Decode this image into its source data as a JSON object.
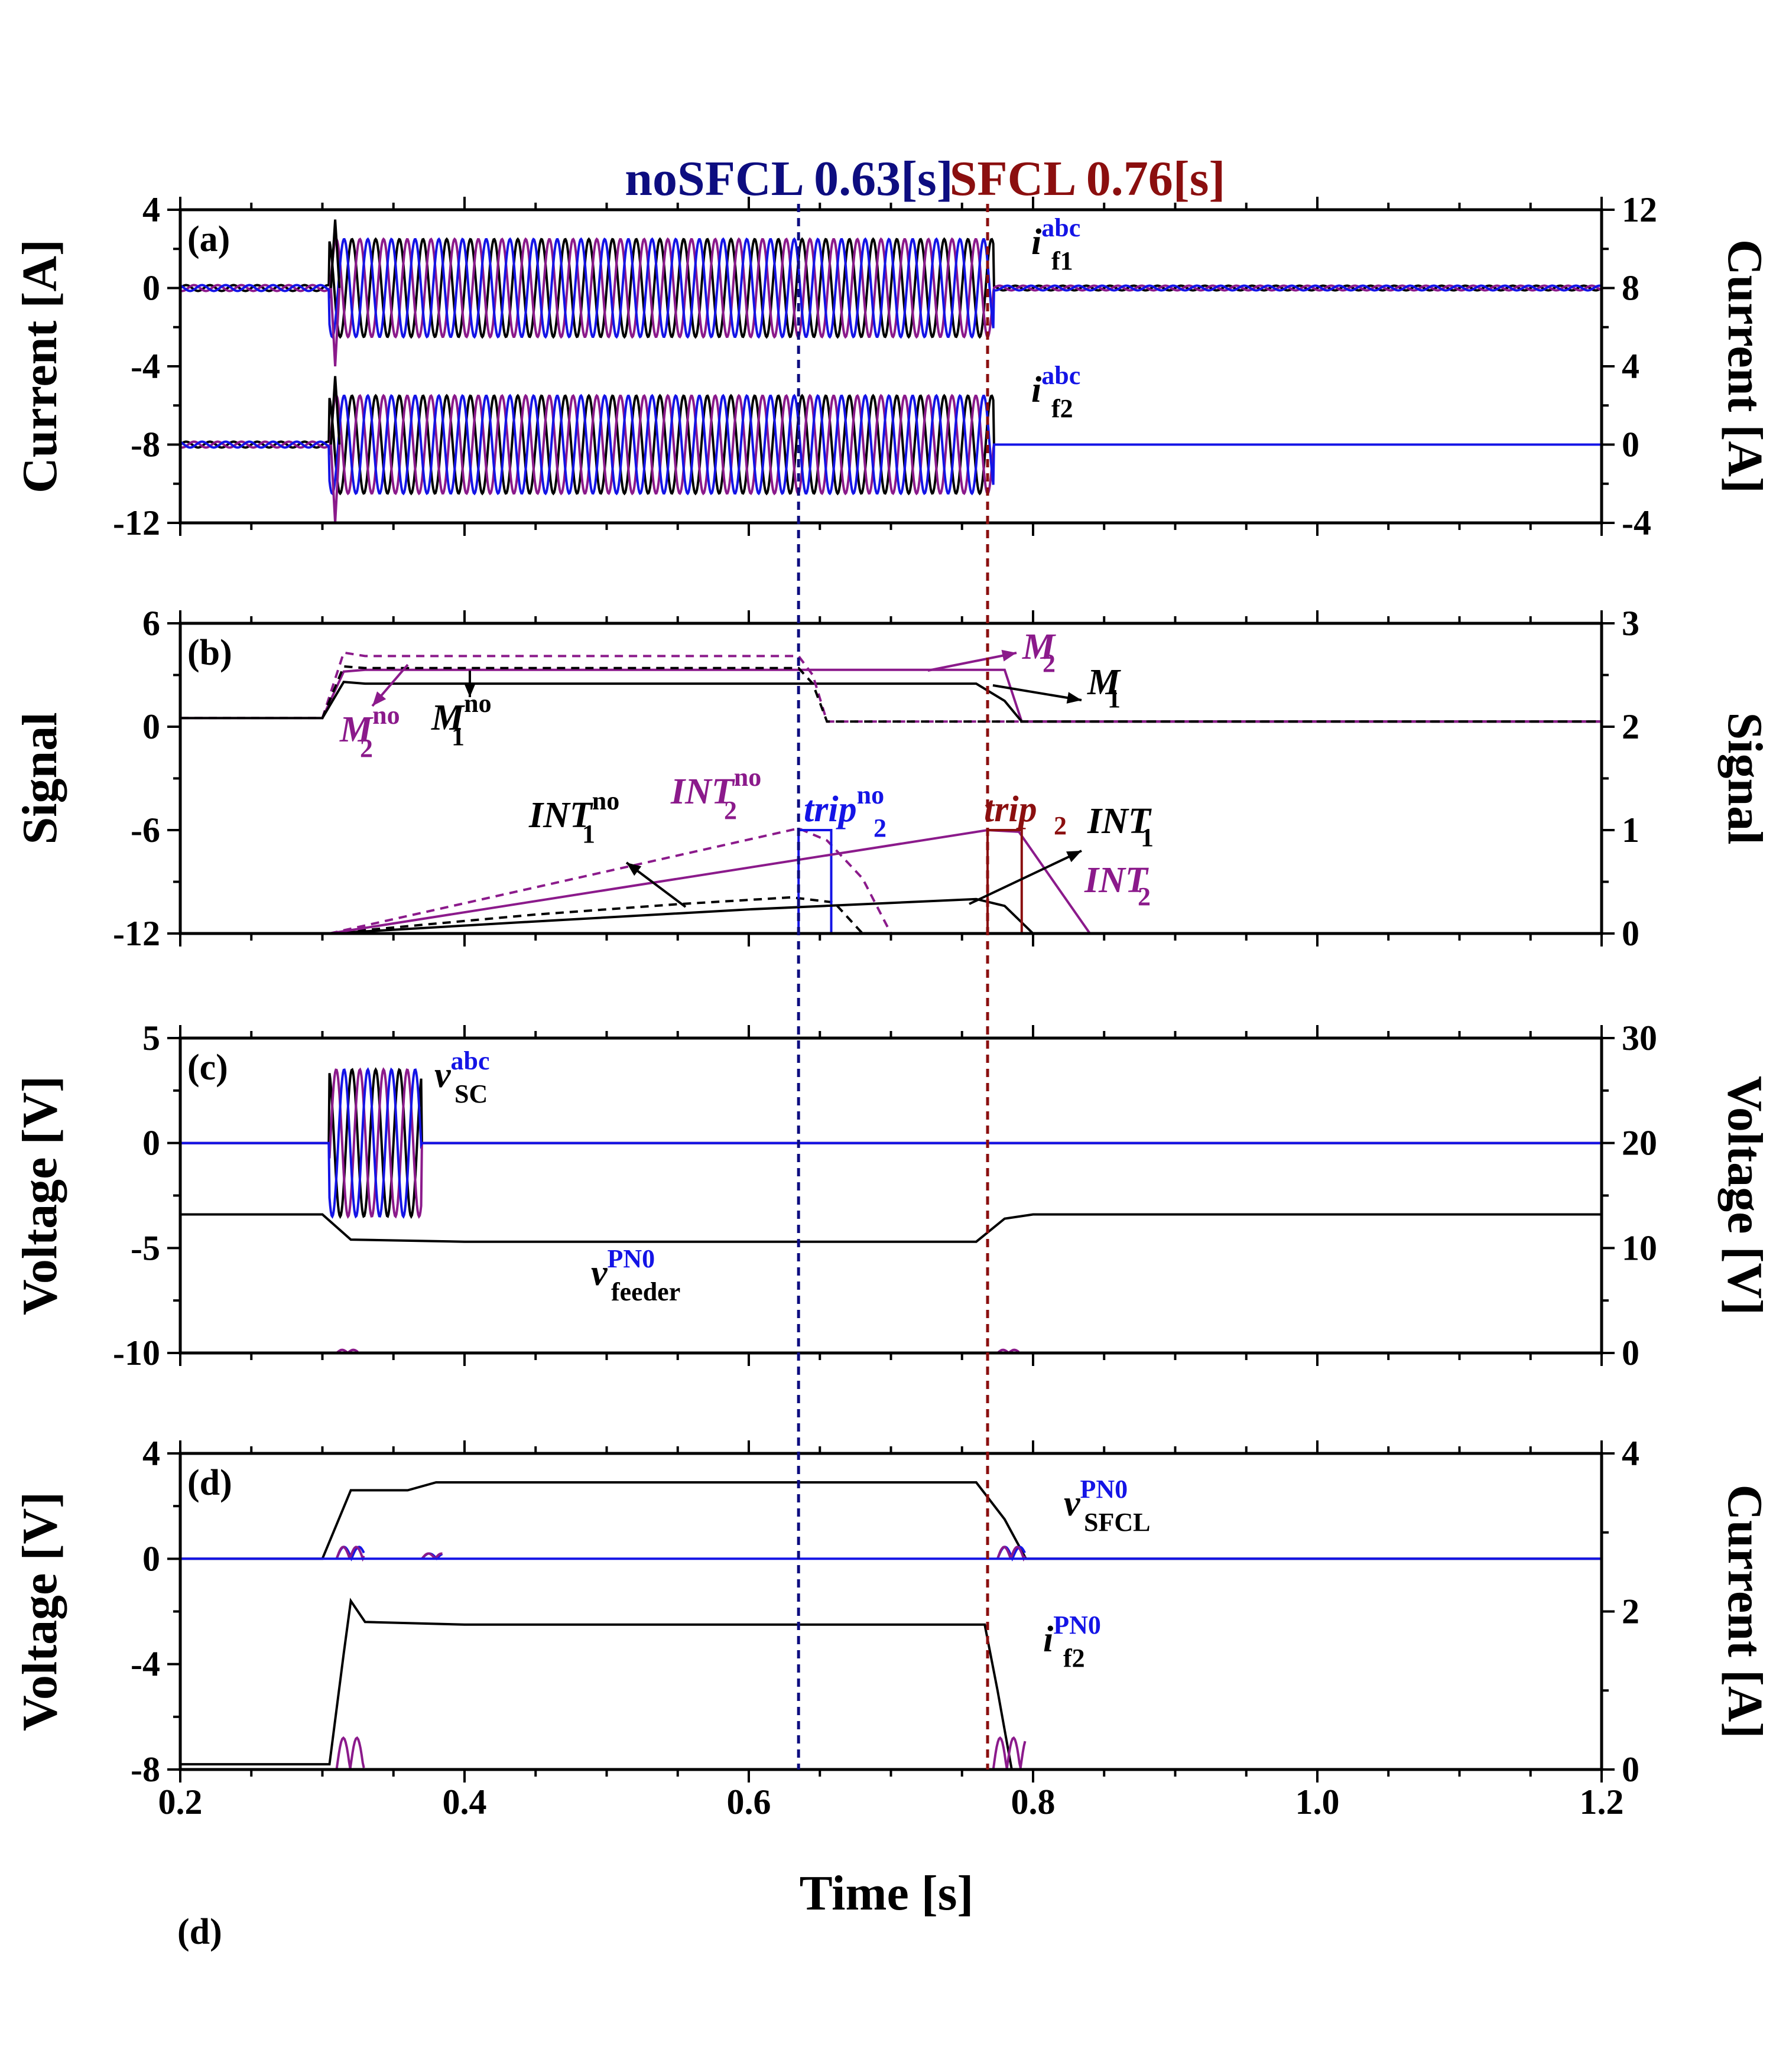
{
  "colors": {
    "black": "#000000",
    "purple": "#8b1a8b",
    "blue": "#1414e6",
    "navy": "#0d0d80",
    "darkred": "#8b0f0f"
  },
  "header": {
    "left": "noSFCL 0.63[s]",
    "right": "SFCL 0.76[s]"
  },
  "x_axis": {
    "label": "Time [s]",
    "min": 0.2,
    "max": 1.2,
    "ticks": [
      "0.2",
      "0.4",
      "0.6",
      "0.8",
      "1.0",
      "1.2"
    ]
  },
  "bottom_letter": "(d)",
  "markers": {
    "noSFCL_t": 0.635,
    "SFCL_t": 0.768
  },
  "chart_data": [
    {
      "panel": "(a)",
      "type": "line",
      "ylabel_left": "Current [A]",
      "ylim_left": [
        -12,
        4
      ],
      "yticks_left": [
        "4",
        "0",
        "-4",
        "-8",
        "-12"
      ],
      "ylabel_right": "Current [A]",
      "ylim_right": [
        -4,
        12
      ],
      "yticks_right": [
        "12",
        "8",
        "4",
        "0",
        "-4"
      ],
      "labels": [
        {
          "base": "i",
          "sup": "abc",
          "sub": "f1"
        },
        {
          "base": "i",
          "sup": "abc",
          "sub": "f2"
        }
      ],
      "series": [
        {
          "name": "i_f1 abc (offset 0 A)",
          "offset": 0,
          "pre_fault_amp": 0.15,
          "fault_amp": 2.5,
          "fault_start": 0.305,
          "fault_end": 0.772,
          "post_amp": 0.12,
          "freq_hz": 60
        },
        {
          "name": "i_f2 abc (offset -8 A)",
          "offset": -8,
          "pre_fault_amp": 0.15,
          "fault_amp": 2.5,
          "fault_start": 0.305,
          "fault_end": 0.772,
          "post_amp": 0.0,
          "freq_hz": 60
        }
      ]
    },
    {
      "panel": "(b)",
      "type": "line",
      "ylabel_left": "Signal",
      "ylim_left": [
        -12,
        6
      ],
      "yticks_left": [
        "6",
        "0",
        "-6",
        "-12"
      ],
      "ylabel_right": "Signal",
      "ylim_right": [
        0,
        3
      ],
      "yticks_right": [
        "3",
        "2",
        "1",
        "0"
      ],
      "labels": [
        {
          "base": "M",
          "sup": "",
          "sub": "2"
        },
        {
          "base": "M",
          "sup": "",
          "sub": "1"
        },
        {
          "base": "M",
          "sup": "no",
          "sub": "2"
        },
        {
          "base": "M",
          "sup": "no",
          "sub": "1"
        },
        {
          "base": "INT",
          "sup": "no",
          "sub": "1"
        },
        {
          "base": "INT",
          "sup": "no",
          "sub": "2"
        },
        {
          "base": "trip",
          "sup": "no",
          "sub": "2"
        },
        {
          "base": "trip",
          "sup": "",
          "sub": "2"
        },
        {
          "base": "INT",
          "sup": "",
          "sub": "1"
        },
        {
          "base": "INT",
          "sup": "",
          "sub": "2"
        }
      ],
      "series": [
        {
          "name": "M2",
          "points": [
            [
              0.2,
              0.5
            ],
            [
              0.3,
              0.5
            ],
            [
              0.315,
              3.2
            ],
            [
              0.33,
              3.3
            ],
            [
              0.78,
              3.3
            ],
            [
              0.792,
              0.3
            ],
            [
              1.2,
              0.3
            ]
          ]
        },
        {
          "name": "M1",
          "points": [
            [
              0.2,
              0.5
            ],
            [
              0.3,
              0.5
            ],
            [
              0.315,
              2.6
            ],
            [
              0.33,
              2.5
            ],
            [
              0.76,
              2.5
            ],
            [
              0.78,
              1.5
            ],
            [
              0.792,
              0.3
            ],
            [
              1.2,
              0.3
            ]
          ]
        },
        {
          "name": "M2 no",
          "points": [
            [
              0.2,
              0.5
            ],
            [
              0.3,
              0.5
            ],
            [
              0.315,
              4.3
            ],
            [
              0.33,
              4.1
            ],
            [
              0.635,
              4.1
            ],
            [
              0.645,
              3.0
            ],
            [
              0.655,
              0.3
            ],
            [
              1.2,
              0.3
            ]
          ]
        },
        {
          "name": "M1 no",
          "points": [
            [
              0.2,
              0.5
            ],
            [
              0.3,
              0.5
            ],
            [
              0.315,
              3.5
            ],
            [
              0.33,
              3.4
            ],
            [
              0.635,
              3.4
            ],
            [
              0.645,
              2.5
            ],
            [
              0.655,
              0.3
            ],
            [
              1.2,
              0.3
            ]
          ]
        },
        {
          "name": "INT1 no",
          "points": [
            [
              0.305,
              -12
            ],
            [
              0.37,
              -11.5
            ],
            [
              0.45,
              -10.9
            ],
            [
              0.55,
              -10.3
            ],
            [
              0.63,
              -9.9
            ],
            [
              0.66,
              -10.2
            ],
            [
              0.68,
              -12
            ]
          ]
        },
        {
          "name": "INT2 no",
          "points": [
            [
              0.305,
              -12
            ],
            [
              0.635,
              -5.9
            ],
            [
              0.655,
              -6.6
            ],
            [
              0.68,
              -8.8
            ],
            [
              0.7,
              -12
            ]
          ]
        },
        {
          "name": "trip2 no",
          "points": [
            [
              0.635,
              -12
            ],
            [
              0.635,
              -6
            ],
            [
              0.658,
              -6
            ],
            [
              0.658,
              -12
            ]
          ]
        },
        {
          "name": "INT1",
          "points": [
            [
              0.305,
              -12
            ],
            [
              0.45,
              -11.3
            ],
            [
              0.6,
              -10.6
            ],
            [
              0.76,
              -10
            ],
            [
              0.78,
              -10.4
            ],
            [
              0.8,
              -12
            ]
          ]
        },
        {
          "name": "INT2",
          "points": [
            [
              0.305,
              -12
            ],
            [
              0.768,
              -6
            ],
            [
              0.79,
              -6.1
            ],
            [
              0.84,
              -12
            ]
          ]
        },
        {
          "name": "trip2",
          "points": [
            [
              0.768,
              -12
            ],
            [
              0.768,
              -6
            ],
            [
              0.792,
              -6
            ],
            [
              0.792,
              -12
            ]
          ]
        }
      ]
    },
    {
      "panel": "(c)",
      "type": "line",
      "ylabel_left": "Voltage [V]",
      "ylim_left": [
        -10,
        5
      ],
      "yticks_left": [
        "5",
        "0",
        "-5",
        "-10"
      ],
      "ylabel_right": "Voltage [V]",
      "ylim_right": [
        0,
        30
      ],
      "yticks_right": [
        "30",
        "20",
        "10",
        "0"
      ],
      "labels": [
        {
          "base": "v",
          "sup": "abc",
          "sub": "SC"
        },
        {
          "base": "v",
          "sup": "PN0",
          "sub": "feeder"
        }
      ],
      "series": [
        {
          "name": "v_SC abc",
          "offset": 0,
          "amp": 3.5,
          "start": 0.305,
          "end": 0.37,
          "freq_hz": 60
        },
        {
          "name": "v_feeder PN0",
          "points": [
            [
              0.2,
              -3.4
            ],
            [
              0.3,
              -3.4
            ],
            [
              0.32,
              -4.6
            ],
            [
              0.4,
              -4.7
            ],
            [
              0.76,
              -4.7
            ],
            [
              0.78,
              -3.6
            ],
            [
              0.8,
              -3.4
            ],
            [
              1.2,
              -3.4
            ]
          ]
        }
      ]
    },
    {
      "panel": "(d)",
      "type": "line",
      "ylabel_left": "Voltage [V]",
      "ylim_left": [
        -8,
        4
      ],
      "yticks_left": [
        "4",
        "0",
        "-4",
        "-8"
      ],
      "ylabel_right": "Current [A]",
      "ylim_right": [
        0,
        4
      ],
      "yticks_right": [
        "4",
        "2",
        "0"
      ],
      "labels": [
        {
          "base": "v",
          "sup": "PN0",
          "sub": "SFCL"
        },
        {
          "base": "i",
          "sup": "PN0",
          "sub": "f2"
        }
      ],
      "series": [
        {
          "name": "v_SFCL P",
          "points": [
            [
              0.2,
              0
            ],
            [
              0.3,
              0
            ],
            [
              0.32,
              2.6
            ],
            [
              0.36,
              2.6
            ],
            [
              0.38,
              2.9
            ],
            [
              0.76,
              2.9
            ],
            [
              0.78,
              1.5
            ],
            [
              0.795,
              0
            ],
            [
              1.2,
              0
            ]
          ]
        },
        {
          "name": "i_f2 P",
          "points": [
            [
              0.2,
              -7.8
            ],
            [
              0.305,
              -7.8
            ],
            [
              0.315,
              -3.6
            ],
            [
              0.32,
              -1.6
            ],
            [
              0.33,
              -2.4
            ],
            [
              0.4,
              -2.5
            ],
            [
              0.766,
              -2.5
            ],
            [
              0.775,
              -5.0
            ],
            [
              0.785,
              -8
            ],
            [
              1.2,
              -8
            ]
          ]
        }
      ]
    }
  ]
}
